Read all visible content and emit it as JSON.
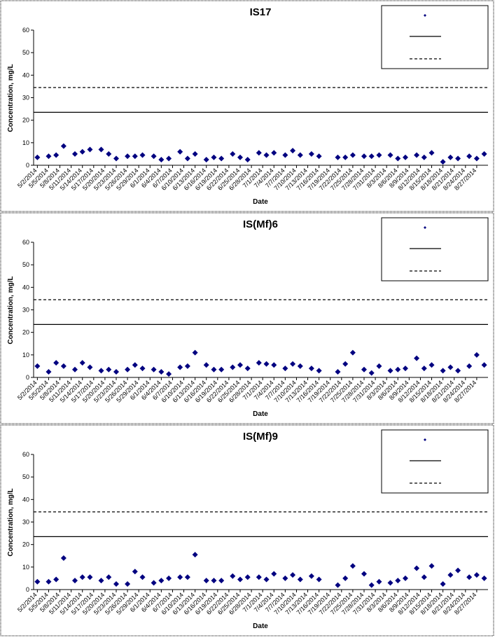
{
  "chart_data": [
    {
      "type": "scatter",
      "title": "IS17",
      "xlabel": "Date",
      "ylabel": "Concentration, mg/L",
      "xlim": [
        "5/1/2014",
        "8/30/2014"
      ],
      "ylim": [
        0,
        60
      ],
      "yticks": [
        0,
        10,
        20,
        30,
        40,
        50,
        60
      ],
      "xticks": [
        "5/2/2014",
        "5/5/2014",
        "5/8/2014",
        "5/11/2014",
        "5/14/2014",
        "5/17/2014",
        "5/20/2014",
        "5/23/2014",
        "5/26/2014",
        "5/29/2014",
        "6/1/2014",
        "6/4/2014",
        "6/7/2014",
        "6/10/2014",
        "6/13/2014",
        "6/16/2014",
        "6/19/2014",
        "6/22/2014",
        "6/25/2014",
        "6/28/2014",
        "7/1/2014",
        "7/4/2014",
        "7/7/2014",
        "7/10/2014",
        "7/13/2014",
        "7/16/2014",
        "7/19/2014",
        "7/22/2014",
        "7/25/2014",
        "7/28/2014",
        "7/31/2014",
        "8/3/2014",
        "8/6/2014",
        "8/9/2014",
        "8/12/2014",
        "8/15/2014",
        "8/18/2014",
        "8/21/2014",
        "8/24/2014",
        "8/27/2014"
      ],
      "x": [
        "5/2/2014",
        "5/5/2014",
        "5/7/2014",
        "5/9/2014",
        "5/12/2014",
        "5/14/2014",
        "5/16/2014",
        "5/19/2014",
        "5/21/2014",
        "5/23/2014",
        "5/26/2014",
        "5/28/2014",
        "5/30/2014",
        "6/2/2014",
        "6/4/2014",
        "6/6/2014",
        "6/9/2014",
        "6/11/2014",
        "6/13/2014",
        "6/16/2014",
        "6/18/2014",
        "6/20/2014",
        "6/23/2014",
        "6/25/2014",
        "6/27/2014",
        "6/30/2014",
        "7/2/2014",
        "7/4/2014",
        "7/7/2014",
        "7/9/2014",
        "7/11/2014",
        "7/14/2014",
        "7/16/2014",
        "7/21/2014",
        "7/23/2014",
        "7/25/2014",
        "7/28/2014",
        "7/30/2014",
        "8/1/2014",
        "8/4/2014",
        "8/6/2014",
        "8/8/2014",
        "8/11/2014",
        "8/13/2014",
        "8/15/2014",
        "8/18/2014",
        "8/20/2014",
        "8/22/2014",
        "8/25/2014",
        "8/27/2014",
        "8/29/2014"
      ],
      "series": [
        {
          "color": "#000080",
          "values": [
            3.5,
            4,
            4.5,
            8.5,
            5,
            6,
            7,
            7,
            5,
            3,
            4,
            4,
            4.5,
            4,
            2.5,
            3,
            6,
            3,
            5,
            2.5,
            3.5,
            3,
            5,
            3.5,
            2.5,
            5.5,
            4.5,
            5.5,
            4.5,
            6.5,
            4.5,
            5,
            4,
            3.5,
            3.5,
            4.5,
            4,
            4,
            4.5,
            4.5,
            3,
            3.5,
            4.5,
            3.5,
            5.5,
            1.5,
            3.5,
            3,
            4,
            3,
            5
          ]
        }
      ],
      "reference_lines": [
        {
          "value": 23.5,
          "style": "solid"
        },
        {
          "value": 34.5,
          "style": "dashed"
        }
      ]
    },
    {
      "type": "scatter",
      "title": "IS(Mf)6",
      "xlabel": "Date",
      "ylabel": "Concentration, mg/L",
      "xlim": [
        "5/1/2014",
        "8/30/2014"
      ],
      "ylim": [
        0,
        60
      ],
      "yticks": [
        0,
        10,
        20,
        30,
        40,
        50,
        60
      ],
      "xticks": [
        "5/2/2014",
        "5/5/2014",
        "5/8/2014",
        "5/11/2014",
        "5/14/2014",
        "5/17/2014",
        "5/20/2014",
        "5/23/2014",
        "5/26/2014",
        "5/29/2014",
        "6/1/2014",
        "6/4/2014",
        "6/7/2014",
        "6/10/2014",
        "6/13/2014",
        "6/16/2014",
        "6/19/2014",
        "6/22/2014",
        "6/25/2014",
        "6/28/2014",
        "7/1/2014",
        "7/4/2014",
        "7/7/2014",
        "7/10/2014",
        "7/13/2014",
        "7/16/2014",
        "7/19/2014",
        "7/22/2014",
        "7/25/2014",
        "7/28/2014",
        "7/31/2014",
        "8/3/2014",
        "8/6/2014",
        "8/9/2014",
        "8/12/2014",
        "8/15/2014",
        "8/18/2014",
        "8/21/2014",
        "8/24/2014",
        "8/27/2014"
      ],
      "x": [
        "5/2/2014",
        "5/5/2014",
        "5/7/2014",
        "5/9/2014",
        "5/12/2014",
        "5/14/2014",
        "5/16/2014",
        "5/19/2014",
        "5/21/2014",
        "5/23/2014",
        "5/26/2014",
        "5/28/2014",
        "5/30/2014",
        "6/2/2014",
        "6/4/2014",
        "6/6/2014",
        "6/9/2014",
        "6/11/2014",
        "6/13/2014",
        "6/16/2014",
        "6/18/2014",
        "6/20/2014",
        "6/23/2014",
        "6/25/2014",
        "6/27/2014",
        "6/30/2014",
        "7/2/2014",
        "7/4/2014",
        "7/7/2014",
        "7/9/2014",
        "7/11/2014",
        "7/14/2014",
        "7/16/2014",
        "7/21/2014",
        "7/23/2014",
        "7/25/2014",
        "7/28/2014",
        "7/30/2014",
        "8/1/2014",
        "8/4/2014",
        "8/6/2014",
        "8/8/2014",
        "8/11/2014",
        "8/13/2014",
        "8/15/2014",
        "8/18/2014",
        "8/20/2014",
        "8/22/2014",
        "8/25/2014",
        "8/27/2014",
        "8/29/2014"
      ],
      "series": [
        {
          "color": "#000080",
          "values": [
            5,
            2.5,
            6.5,
            5,
            3.5,
            6.5,
            4.5,
            3,
            3.5,
            2.5,
            3.5,
            5.5,
            4,
            3.5,
            2.5,
            1.5,
            4.5,
            5,
            11,
            5.5,
            3.5,
            3.5,
            4.5,
            5.5,
            4,
            6.5,
            6,
            5.5,
            4,
            6,
            5,
            4,
            3,
            2.5,
            6,
            11,
            3.5,
            2,
            5,
            3,
            3.5,
            4,
            8.5,
            4,
            5.5,
            3,
            4.5,
            3,
            5,
            10,
            5.5
          ]
        }
      ],
      "reference_lines": [
        {
          "value": 23.5,
          "style": "solid"
        },
        {
          "value": 34.5,
          "style": "dashed"
        }
      ]
    },
    {
      "type": "scatter",
      "title": "IS(Mf)9",
      "xlabel": "Date",
      "ylabel": "Concentration, mg/L",
      "xlim": [
        "5/1/2014",
        "8/30/2014"
      ],
      "ylim": [
        0,
        60
      ],
      "yticks": [
        0,
        10,
        20,
        30,
        40,
        50,
        60
      ],
      "xticks": [
        "5/2/2014",
        "5/5/2014",
        "5/8/2014",
        "5/11/2014",
        "5/14/2014",
        "5/17/2014",
        "5/20/2014",
        "5/23/2014",
        "5/26/2014",
        "5/29/2014",
        "6/1/2014",
        "6/4/2014",
        "6/7/2014",
        "6/10/2014",
        "6/13/2014",
        "6/16/2014",
        "6/19/2014",
        "6/22/2014",
        "6/25/2014",
        "6/28/2014",
        "7/1/2014",
        "7/4/2014",
        "7/7/2014",
        "7/10/2014",
        "7/13/2014",
        "7/16/2014",
        "7/19/2014",
        "7/22/2014",
        "7/25/2014",
        "7/28/2014",
        "7/31/2014",
        "8/3/2014",
        "8/6/2014",
        "8/9/2014",
        "8/12/2014",
        "8/15/2014",
        "8/18/2014",
        "8/21/2014",
        "8/24/2014",
        "8/27/2014"
      ],
      "x": [
        "5/2/2014",
        "5/5/2014",
        "5/7/2014",
        "5/9/2014",
        "5/12/2014",
        "5/14/2014",
        "5/16/2014",
        "5/19/2014",
        "5/21/2014",
        "5/23/2014",
        "5/26/2014",
        "5/28/2014",
        "5/30/2014",
        "6/2/2014",
        "6/4/2014",
        "6/6/2014",
        "6/9/2014",
        "6/11/2014",
        "6/13/2014",
        "6/16/2014",
        "6/18/2014",
        "6/20/2014",
        "6/23/2014",
        "6/25/2014",
        "6/27/2014",
        "6/30/2014",
        "7/2/2014",
        "7/4/2014",
        "7/7/2014",
        "7/9/2014",
        "7/11/2014",
        "7/14/2014",
        "7/16/2014",
        "7/21/2014",
        "7/23/2014",
        "7/25/2014",
        "7/28/2014",
        "7/30/2014",
        "8/1/2014",
        "8/4/2014",
        "8/6/2014",
        "8/8/2014",
        "8/11/2014",
        "8/13/2014",
        "8/15/2014",
        "8/18/2014",
        "8/20/2014",
        "8/22/2014",
        "8/25/2014",
        "8/27/2014",
        "8/29/2014"
      ],
      "series": [
        {
          "color": "#000080",
          "values": [
            3.5,
            3.5,
            4.5,
            14,
            4,
            5.5,
            5.5,
            4,
            5.5,
            2.5,
            2.5,
            8,
            5.5,
            3,
            4,
            5,
            5.5,
            5.5,
            15.5,
            4,
            4,
            4,
            6,
            4.5,
            5.5,
            5.5,
            4.5,
            7,
            5,
            6.5,
            4.5,
            6,
            4.5,
            2,
            5,
            10.5,
            7,
            2,
            3.5,
            3,
            4,
            5,
            9.5,
            5.5,
            10.5,
            2.5,
            6.5,
            8.5,
            5.5,
            6.5,
            5
          ]
        }
      ],
      "reference_lines": [
        {
          "value": 23.5,
          "style": "solid"
        },
        {
          "value": 34.5,
          "style": "dashed"
        }
      ]
    }
  ]
}
